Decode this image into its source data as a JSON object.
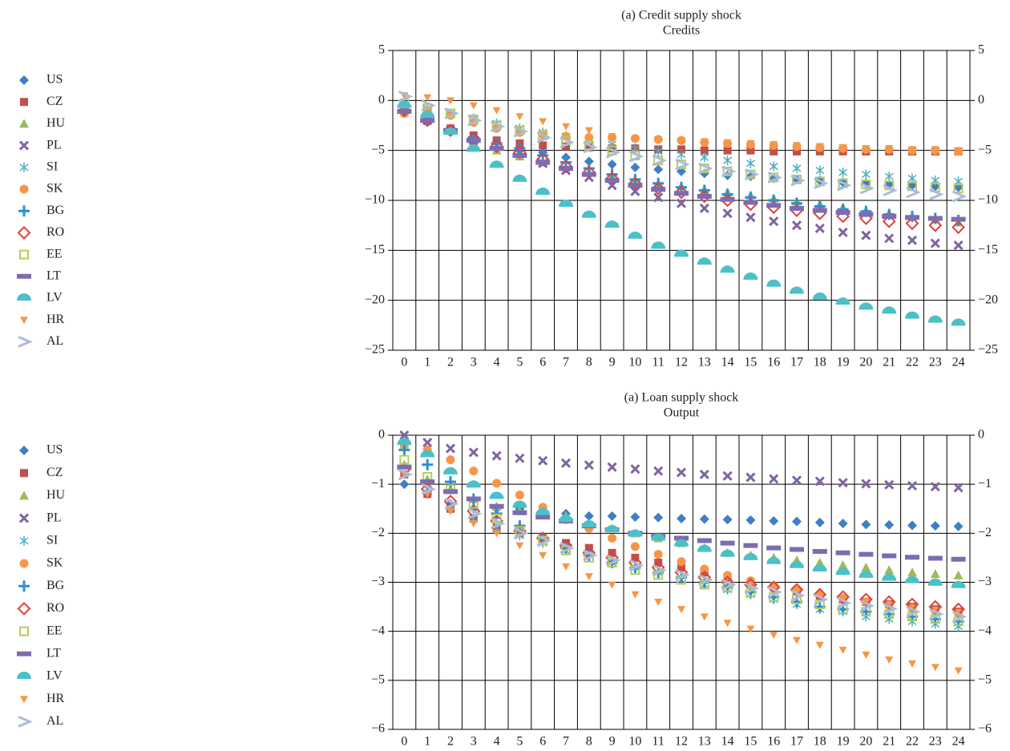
{
  "chart_data": [
    {
      "type": "scatter",
      "title": "(a) Credit supply shock",
      "subtitle": "Credits",
      "categories": [
        "0",
        "1",
        "2",
        "3",
        "4",
        "5",
        "6",
        "7",
        "8",
        "9",
        "10",
        "11",
        "12",
        "13",
        "14",
        "15",
        "16",
        "17",
        "18",
        "19",
        "20",
        "21",
        "22",
        "23",
        "24"
      ],
      "ylim": [
        -25,
        5
      ],
      "yticks": [
        5,
        0,
        {
          "value": -5,
          "label": "−5"
        },
        {
          "value": -10,
          "label": "−10"
        },
        {
          "value": -15,
          "label": "−15"
        },
        {
          "value": -20,
          "label": "−20"
        },
        {
          "value": -25,
          "label": "−25"
        }
      ],
      "grid": true,
      "series": [
        {
          "name": "US",
          "color": "#3f7fc4",
          "values": [
            -1,
            -2,
            -3,
            -3.8,
            -4.2,
            -4.7,
            -5.2,
            -5.7,
            -6.1,
            -6.4,
            -6.7,
            -6.9,
            -7.1,
            -7.3,
            -7.5,
            -7.6,
            -7.8,
            -7.9,
            -8,
            -8.2,
            -8.3,
            -8.4,
            -8.5,
            -8.6,
            -8.7
          ]
        },
        {
          "name": "CZ",
          "color": "#c0504d",
          "values": [
            -1.2,
            -1.8,
            -2.8,
            -3.5,
            -4,
            -4.3,
            -4.5,
            -4.6,
            -4.7,
            -4.8,
            -4.8,
            -4.9,
            -4.9,
            -5,
            -5,
            -5,
            -5.1,
            -5.1,
            -5.1,
            -5.1,
            -5.1,
            -5.1,
            -5.1,
            -5.1,
            -5.1
          ]
        },
        {
          "name": "HU",
          "color": "#9bbb59",
          "values": [
            -0.5,
            -1.5,
            -3,
            -4.2,
            -5,
            -5.6,
            -6.2,
            -6.7,
            -7.2,
            -7.6,
            -8,
            -8.3,
            -8.6,
            -8.9,
            -9.2,
            -9.5,
            -9.8,
            -10.1,
            -10.4,
            -10.7,
            -11,
            -11.3,
            -11.6,
            -11.9,
            -12.2
          ]
        },
        {
          "name": "PL",
          "color": "#8064a2",
          "values": [
            -1,
            -2,
            -3,
            -4,
            -4.5,
            -5.3,
            -6.3,
            -7,
            -7.7,
            -8.5,
            -9.1,
            -9.7,
            -10.3,
            -10.8,
            -11.3,
            -11.7,
            -12.1,
            -12.5,
            -12.8,
            -13.2,
            -13.5,
            -13.8,
            -14,
            -14.3,
            -14.5
          ]
        },
        {
          "name": "SI",
          "color": "#4bacc6",
          "values": [
            -0.4,
            -0.8,
            -1.3,
            -1.8,
            -2.3,
            -2.8,
            -3.2,
            -3.6,
            -4,
            -4.4,
            -4.8,
            -5.1,
            -5.4,
            -5.7,
            -6,
            -6.3,
            -6.6,
            -6.8,
            -7,
            -7.2,
            -7.4,
            -7.6,
            -7.8,
            -8,
            -8.1
          ]
        },
        {
          "name": "SK",
          "color": "#f79646",
          "values": [
            -1.3,
            -1,
            -1.5,
            -2.2,
            -2.8,
            -3.2,
            -3.4,
            -3.6,
            -3.7,
            -3.7,
            -3.8,
            -3.9,
            -4,
            -4.2,
            -4.3,
            -4.4,
            -4.5,
            -4.6,
            -4.7,
            -4.8,
            -4.9,
            -4.9,
            -5,
            -5,
            -5.1
          ]
        },
        {
          "name": "BG",
          "color": "#2c8fd6",
          "values": [
            -1,
            -2,
            -3,
            -3.7,
            -4.3,
            -4.8,
            -5.5,
            -6.2,
            -6.8,
            -7.4,
            -7.9,
            -8.3,
            -8.7,
            -9,
            -9.4,
            -9.7,
            -10,
            -10.3,
            -10.6,
            -10.9,
            -11.1,
            -11.4,
            -11.6,
            -11.8,
            -12
          ]
        },
        {
          "name": "RO",
          "color": "#e0403a",
          "values": [
            -1,
            -2,
            -3,
            -3.8,
            -4.6,
            -5.2,
            -5.9,
            -6.6,
            -7.2,
            -7.8,
            -8.3,
            -8.8,
            -9.2,
            -9.6,
            -10,
            -10.4,
            -10.7,
            -11,
            -11.3,
            -11.6,
            -11.8,
            -12.1,
            -12.3,
            -12.5,
            -12.7
          ]
        },
        {
          "name": "EE",
          "color": "#b5cc5a",
          "values": [
            -0.3,
            -0.8,
            -1.3,
            -1.9,
            -2.5,
            -3,
            -3.5,
            -4,
            -4.5,
            -5,
            -5.5,
            -6,
            -6.4,
            -6.8,
            -7.1,
            -7.4,
            -7.7,
            -7.9,
            -8.1,
            -8.3,
            -8.4,
            -8.5,
            -8.6,
            -8.7,
            -8.8
          ]
        },
        {
          "name": "LT",
          "color": "#7e6bb0",
          "values": [
            -1.1,
            -2,
            -3,
            -4,
            -4.8,
            -5.5,
            -6.2,
            -6.8,
            -7.4,
            -8,
            -8.5,
            -8.9,
            -9.3,
            -9.6,
            -9.9,
            -10.2,
            -10.5,
            -10.8,
            -11,
            -11.2,
            -11.4,
            -11.6,
            -11.7,
            -11.8,
            -11.9
          ]
        },
        {
          "name": "LV",
          "color": "#4bc0c8",
          "values": [
            -0.5,
            -1.5,
            -3.2,
            -4.9,
            -6.5,
            -7.9,
            -9.2,
            -10.4,
            -11.5,
            -12.5,
            -13.6,
            -14.6,
            -15.4,
            -16.2,
            -17,
            -17.7,
            -18.4,
            -19.1,
            -19.7,
            -20.2,
            -20.7,
            -21.1,
            -21.6,
            -22,
            -22.3
          ]
        },
        {
          "name": "HR",
          "color": "#f79646",
          "values": [
            0.5,
            0.3,
            0,
            -0.5,
            -1,
            -1.6,
            -2.1,
            -2.6,
            -3,
            -3.6,
            -3.8,
            -3.9,
            -4,
            -4.1,
            -4.2,
            -4.3,
            -4.4,
            -4.5,
            -4.6,
            -4.7,
            -4.8,
            -4.8,
            -4.9,
            -4.9,
            -5
          ]
        },
        {
          "name": "AL",
          "color": "#a9bcd9",
          "values": [
            0.4,
            -0.5,
            -1.3,
            -2,
            -2.6,
            -3.1,
            -3.7,
            -4.2,
            -4.7,
            -5.2,
            -5.6,
            -6,
            -6.4,
            -6.8,
            -7.1,
            -7.4,
            -7.7,
            -8,
            -8.3,
            -8.5,
            -8.8,
            -9,
            -9.2,
            -9.4,
            -9.6
          ]
        }
      ]
    },
    {
      "type": "scatter",
      "title": "(a) Loan supply shock",
      "subtitle": "Output",
      "categories": [
        "0",
        "1",
        "2",
        "3",
        "4",
        "5",
        "6",
        "7",
        "8",
        "9",
        "10",
        "11",
        "12",
        "13",
        "14",
        "15",
        "16",
        "17",
        "18",
        "19",
        "20",
        "21",
        "22",
        "23",
        "24"
      ],
      "ylim": [
        -6,
        0
      ],
      "yticks": [
        0,
        {
          "value": -1,
          "label": "−1"
        },
        {
          "value": -2,
          "label": "−2"
        },
        {
          "value": -3,
          "label": "−3"
        },
        {
          "value": -4,
          "label": "−4"
        },
        {
          "value": -5,
          "label": "−5"
        },
        {
          "value": -6,
          "label": "−6"
        }
      ],
      "grid": true,
      "series": [
        {
          "name": "US",
          "color": "#3f7fc4",
          "values": [
            -1,
            -1.2,
            -1.4,
            -1.5,
            -1.5,
            -1.5,
            -1.6,
            -1.6,
            -1.65,
            -1.65,
            -1.67,
            -1.68,
            -1.7,
            -1.71,
            -1.72,
            -1.73,
            -1.75,
            -1.76,
            -1.78,
            -1.8,
            -1.82,
            -1.83,
            -1.84,
            -1.85,
            -1.86
          ]
        },
        {
          "name": "CZ",
          "color": "#c0504d",
          "values": [
            -0.8,
            -1.2,
            -1.5,
            -1.7,
            -1.9,
            -2,
            -2.1,
            -2.2,
            -2.3,
            -2.4,
            -2.5,
            -2.6,
            -2.7,
            -2.8,
            -2.9,
            -3,
            -3.1,
            -3.2,
            -3.3,
            -3.35,
            -3.4,
            -3.45,
            -3.5,
            -3.55,
            -3.6
          ]
        },
        {
          "name": "HU",
          "color": "#9bbb59",
          "values": [
            -0.6,
            -0.9,
            -1.1,
            -1.3,
            -1.45,
            -1.55,
            -1.6,
            -1.65,
            -1.8,
            -1.9,
            -2,
            -2.1,
            -2.2,
            -2.3,
            -2.4,
            -2.45,
            -2.5,
            -2.55,
            -2.6,
            -2.65,
            -2.7,
            -2.75,
            -2.8,
            -2.83,
            -2.86
          ]
        },
        {
          "name": "PL",
          "color": "#8064a2",
          "values": [
            0,
            -0.15,
            -0.27,
            -0.35,
            -0.42,
            -0.47,
            -0.52,
            -0.57,
            -0.61,
            -0.65,
            -0.69,
            -0.73,
            -0.76,
            -0.8,
            -0.83,
            -0.86,
            -0.89,
            -0.92,
            -0.94,
            -0.97,
            -0.99,
            -1.01,
            -1.03,
            -1.05,
            -1.07
          ]
        },
        {
          "name": "SI",
          "color": "#4bacc6",
          "values": [
            -0.2,
            -1.1,
            -1.45,
            -1.7,
            -1.9,
            -2.05,
            -2.2,
            -2.35,
            -2.45,
            -2.6,
            -2.7,
            -2.8,
            -2.95,
            -3.05,
            -3.15,
            -3.25,
            -3.35,
            -3.45,
            -3.55,
            -3.6,
            -3.7,
            -3.75,
            -3.8,
            -3.85,
            -3.9
          ]
        },
        {
          "name": "SK",
          "color": "#f79646",
          "values": [
            -0.2,
            -0.3,
            -0.5,
            -0.73,
            -0.98,
            -1.22,
            -1.47,
            -1.72,
            -1.9,
            -2.1,
            -2.27,
            -2.43,
            -2.58,
            -2.73,
            -2.86,
            -2.97,
            -3.07,
            -3.16,
            -3.25,
            -3.33,
            -3.4,
            -3.47,
            -3.53,
            -3.58,
            -3.63
          ]
        },
        {
          "name": "BG",
          "color": "#2c8fd6",
          "values": [
            -0.3,
            -0.6,
            -0.95,
            -1.3,
            -1.6,
            -1.85,
            -2.1,
            -2.3,
            -2.45,
            -2.6,
            -2.7,
            -2.8,
            -2.9,
            -3,
            -3.1,
            -3.2,
            -3.3,
            -3.4,
            -3.5,
            -3.55,
            -3.6,
            -3.65,
            -3.7,
            -3.75,
            -3.8
          ]
        },
        {
          "name": "RO",
          "color": "#e0403a",
          "values": [
            -0.7,
            -1.1,
            -1.35,
            -1.55,
            -1.75,
            -1.95,
            -2.1,
            -2.25,
            -2.4,
            -2.5,
            -2.6,
            -2.7,
            -2.8,
            -2.9,
            -3,
            -3.05,
            -3.1,
            -3.15,
            -3.25,
            -3.3,
            -3.35,
            -3.4,
            -3.45,
            -3.5,
            -3.55
          ]
        },
        {
          "name": "EE",
          "color": "#b5cc5a",
          "values": [
            -0.5,
            -0.85,
            -1.1,
            -1.4,
            -1.7,
            -1.95,
            -2.15,
            -2.35,
            -2.5,
            -2.6,
            -2.75,
            -2.85,
            -2.95,
            -3.05,
            -3.1,
            -3.2,
            -3.3,
            -3.35,
            -3.45,
            -3.55,
            -3.6,
            -3.65,
            -3.7,
            -3.75,
            -3.8
          ]
        },
        {
          "name": "LT",
          "color": "#7e6bb0",
          "values": [
            -0.65,
            -0.95,
            -1.15,
            -1.3,
            -1.45,
            -1.58,
            -1.67,
            -1.75,
            -1.85,
            -1.93,
            -2,
            -2.05,
            -2.1,
            -2.15,
            -2.2,
            -2.25,
            -2.3,
            -2.33,
            -2.37,
            -2.4,
            -2.43,
            -2.46,
            -2.49,
            -2.51,
            -2.53
          ]
        },
        {
          "name": "LV",
          "color": "#4bc0c8",
          "values": [
            -0.15,
            -0.4,
            -0.75,
            -1.02,
            -1.25,
            -1.43,
            -1.58,
            -1.72,
            -1.83,
            -1.93,
            -2.02,
            -2.1,
            -2.22,
            -2.33,
            -2.43,
            -2.5,
            -2.58,
            -2.66,
            -2.73,
            -2.8,
            -2.86,
            -2.92,
            -2.97,
            -3.02,
            -3.07
          ]
        },
        {
          "name": "HR",
          "color": "#f79646",
          "values": [
            -0.8,
            -1.2,
            -1.55,
            -1.8,
            -2,
            -2.25,
            -2.45,
            -2.68,
            -2.88,
            -3.05,
            -3.25,
            -3.4,
            -3.55,
            -3.7,
            -3.83,
            -3.95,
            -4.07,
            -4.18,
            -4.28,
            -4.38,
            -4.48,
            -4.58,
            -4.66,
            -4.73,
            -4.8
          ]
        },
        {
          "name": "AL",
          "color": "#a9bcd9",
          "values": [
            -0.8,
            -1.1,
            -1.4,
            -1.6,
            -1.8,
            -2,
            -2.15,
            -2.3,
            -2.45,
            -2.55,
            -2.65,
            -2.75,
            -2.85,
            -2.95,
            -3.05,
            -3.12,
            -3.2,
            -3.27,
            -3.35,
            -3.42,
            -3.48,
            -3.54,
            -3.6,
            -3.65,
            -3.7
          ]
        }
      ]
    }
  ]
}
